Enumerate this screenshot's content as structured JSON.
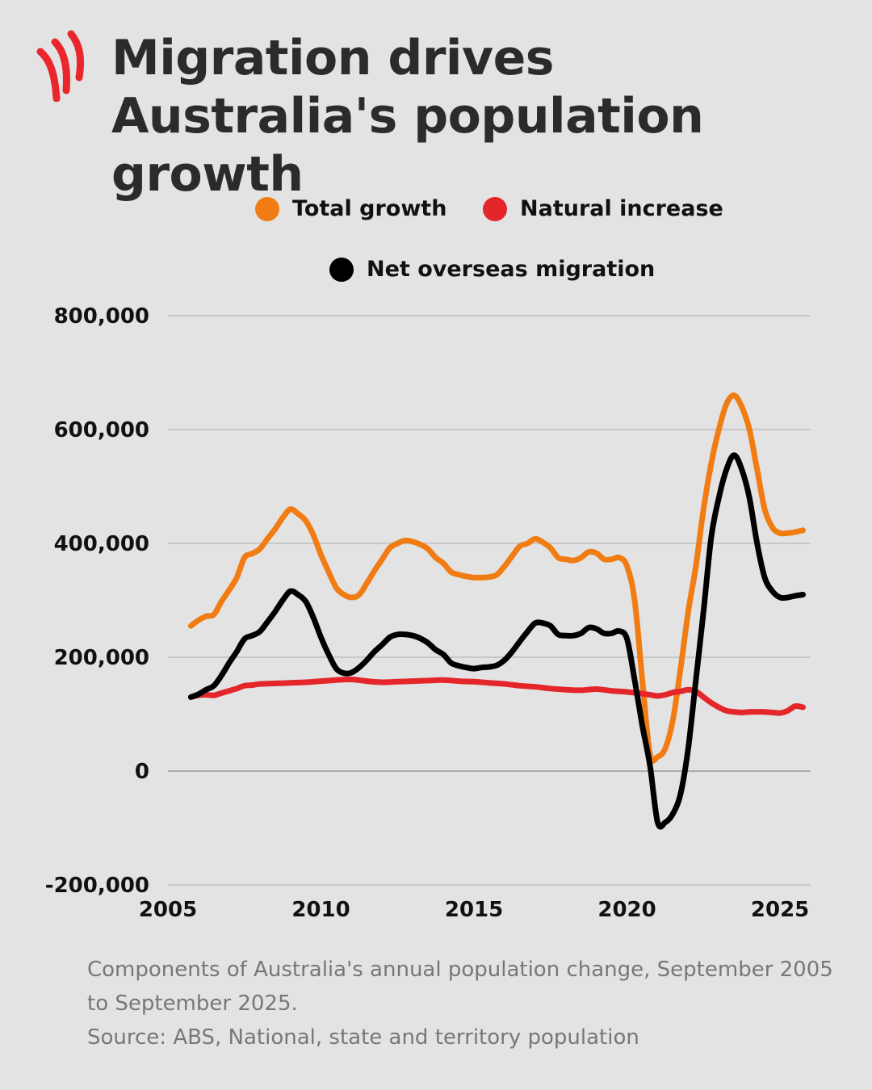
{
  "header": {
    "title": "Migration drives Australia's population growth",
    "logo_icon": "sbs-swoosh-icon",
    "logo_color": "#e8262b"
  },
  "legend": [
    {
      "name": "Total growth",
      "color": "#f07c13"
    },
    {
      "name": "Natural increase",
      "color": "#e4262a"
    },
    {
      "name": "Net overseas migration",
      "color": "#000000"
    }
  ],
  "caption": {
    "line1": "Components of Australia's annual population change, September 2005 to September 2025.",
    "line2": "Source: ABS, National, state and territory population"
  },
  "chart_data": {
    "type": "line",
    "title": "Migration drives Australia's population growth",
    "xlabel": "",
    "ylabel": "",
    "xlim": [
      2005,
      2026
    ],
    "ylim": [
      -200000,
      800000
    ],
    "x_ticks": [
      2005,
      2010,
      2015,
      2020,
      2025
    ],
    "x_tick_labels": [
      "2005",
      "2010",
      "2015",
      "2020",
      "2025"
    ],
    "y_ticks": [
      -200000,
      0,
      200000,
      400000,
      600000,
      800000
    ],
    "y_tick_labels": [
      "-200,000",
      "0",
      "200,000",
      "400,000",
      "600,000",
      "800,000"
    ],
    "grid": "horizontal",
    "legend_position": "top",
    "series": [
      {
        "name": "Total growth",
        "color": "#f07c13",
        "x": [
          2005.75,
          2006.0,
          2006.25,
          2006.5,
          2006.75,
          2007.0,
          2007.25,
          2007.5,
          2007.75,
          2008.0,
          2008.25,
          2008.5,
          2008.75,
          2009.0,
          2009.25,
          2009.5,
          2009.75,
          2010.0,
          2010.25,
          2010.5,
          2010.75,
          2011.0,
          2011.25,
          2011.5,
          2011.75,
          2012.0,
          2012.25,
          2012.5,
          2012.75,
          2013.0,
          2013.25,
          2013.5,
          2013.75,
          2014.0,
          2014.25,
          2014.5,
          2014.75,
          2015.0,
          2015.25,
          2015.5,
          2015.75,
          2016.0,
          2016.25,
          2016.5,
          2016.75,
          2017.0,
          2017.25,
          2017.5,
          2017.75,
          2018.0,
          2018.25,
          2018.5,
          2018.75,
          2019.0,
          2019.25,
          2019.5,
          2019.75,
          2020.0,
          2020.25,
          2020.5,
          2020.75,
          2021.0,
          2021.25,
          2021.5,
          2021.75,
          2022.0,
          2022.25,
          2022.5,
          2022.75,
          2023.0,
          2023.25,
          2023.5,
          2023.75,
          2024.0,
          2024.25,
          2024.5,
          2024.75,
          2025.0,
          2025.25,
          2025.5,
          2025.75
        ],
        "y": [
          255000,
          265000,
          272000,
          275000,
          298000,
          318000,
          340000,
          375000,
          382000,
          390000,
          408000,
          425000,
          445000,
          460000,
          452000,
          440000,
          415000,
          380000,
          350000,
          322000,
          310000,
          305000,
          310000,
          330000,
          352000,
          372000,
          392000,
          400000,
          405000,
          403000,
          398000,
          390000,
          375000,
          365000,
          350000,
          345000,
          342000,
          340000,
          340000,
          341000,
          345000,
          360000,
          378000,
          395000,
          400000,
          408000,
          402000,
          392000,
          375000,
          372000,
          370000,
          375000,
          385000,
          383000,
          372000,
          372000,
          375000,
          360000,
          300000,
          160000,
          30000,
          25000,
          40000,
          90000,
          180000,
          280000,
          360000,
          460000,
          540000,
          600000,
          645000,
          660000,
          640000,
          600000,
          530000,
          460000,
          428000,
          418000,
          418000,
          420000,
          423000
        ]
      },
      {
        "name": "Natural increase",
        "color": "#e4262a",
        "x": [
          2005.75,
          2006.0,
          2006.25,
          2006.5,
          2006.75,
          2007.0,
          2007.25,
          2007.5,
          2007.75,
          2008.0,
          2008.5,
          2009.0,
          2009.5,
          2010.0,
          2010.5,
          2011.0,
          2011.5,
          2012.0,
          2012.5,
          2013.0,
          2013.5,
          2014.0,
          2014.5,
          2015.0,
          2015.5,
          2016.0,
          2016.5,
          2017.0,
          2017.5,
          2018.0,
          2018.5,
          2019.0,
          2019.5,
          2020.0,
          2020.5,
          2020.75,
          2021.0,
          2021.25,
          2021.5,
          2021.75,
          2022.0,
          2022.25,
          2022.5,
          2022.75,
          2023.0,
          2023.25,
          2023.5,
          2023.75,
          2024.0,
          2024.25,
          2024.5,
          2024.75,
          2025.0,
          2025.25,
          2025.5,
          2025.75
        ],
        "y": [
          130000,
          133000,
          134000,
          133000,
          137000,
          141000,
          145000,
          150000,
          151000,
          153000,
          154000,
          155000,
          156000,
          158000,
          160000,
          161000,
          158000,
          156000,
          157000,
          158000,
          159000,
          160000,
          158000,
          157000,
          155000,
          153000,
          150000,
          148000,
          145000,
          143000,
          142000,
          144000,
          141000,
          139000,
          136000,
          134000,
          132000,
          134000,
          138000,
          140000,
          143000,
          140000,
          130000,
          120000,
          112000,
          106000,
          104000,
          103000,
          104000,
          104000,
          104000,
          103000,
          102000,
          106000,
          114000,
          112000
        ]
      },
      {
        "name": "Net overseas migration",
        "color": "#000000",
        "x": [
          2005.75,
          2006.0,
          2006.25,
          2006.5,
          2006.75,
          2007.0,
          2007.25,
          2007.5,
          2007.75,
          2008.0,
          2008.25,
          2008.5,
          2008.75,
          2009.0,
          2009.25,
          2009.5,
          2009.75,
          2010.0,
          2010.25,
          2010.5,
          2010.75,
          2011.0,
          2011.25,
          2011.5,
          2011.75,
          2012.0,
          2012.25,
          2012.5,
          2012.75,
          2013.0,
          2013.25,
          2013.5,
          2013.75,
          2014.0,
          2014.25,
          2014.5,
          2014.75,
          2015.0,
          2015.25,
          2015.5,
          2015.75,
          2016.0,
          2016.25,
          2016.5,
          2016.75,
          2017.0,
          2017.25,
          2017.5,
          2017.75,
          2018.0,
          2018.25,
          2018.5,
          2018.75,
          2019.0,
          2019.25,
          2019.5,
          2019.75,
          2020.0,
          2020.25,
          2020.5,
          2020.75,
          2021.0,
          2021.25,
          2021.5,
          2021.75,
          2022.0,
          2022.25,
          2022.5,
          2022.75,
          2023.0,
          2023.25,
          2023.5,
          2023.75,
          2024.0,
          2024.25,
          2024.5,
          2024.75,
          2025.0,
          2025.25,
          2025.5,
          2025.75
        ],
        "y": [
          130000,
          135000,
          143000,
          150000,
          168000,
          190000,
          210000,
          232000,
          238000,
          245000,
          262000,
          280000,
          300000,
          316000,
          310000,
          298000,
          270000,
          235000,
          205000,
          180000,
          172000,
          173000,
          182000,
          195000,
          210000,
          222000,
          235000,
          240000,
          240000,
          238000,
          233000,
          225000,
          213000,
          205000,
          190000,
          185000,
          182000,
          180000,
          182000,
          183000,
          186000,
          195000,
          210000,
          228000,
          245000,
          260000,
          260000,
          255000,
          240000,
          238000,
          238000,
          242000,
          252000,
          250000,
          242000,
          242000,
          246000,
          232000,
          160000,
          80000,
          10000,
          -90000,
          -90000,
          -75000,
          -40000,
          40000,
          160000,
          280000,
          410000,
          480000,
          530000,
          555000,
          530000,
          480000,
          400000,
          340000,
          316000,
          305000,
          305000,
          308000,
          310000
        ]
      }
    ]
  }
}
